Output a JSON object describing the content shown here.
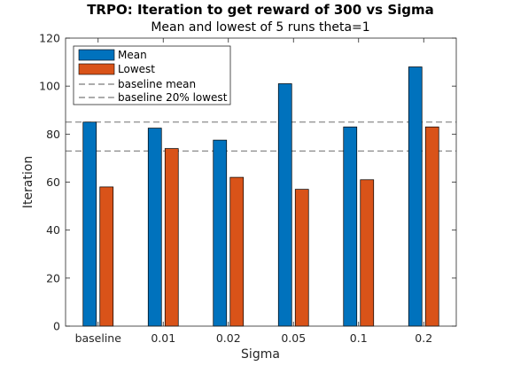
{
  "chart_data": {
    "type": "bar",
    "title": "TRPO: Iteration to get reward of 300 vs Sigma",
    "subtitle": "Mean and lowest of 5 runs theta=1",
    "xlabel": "Sigma",
    "ylabel": "Iteration",
    "ylim": [
      0,
      120
    ],
    "yticks": [
      0,
      20,
      40,
      60,
      80,
      100,
      120
    ],
    "categories": [
      "baseline",
      "0.01",
      "0.02",
      "0.05",
      "0.1",
      "0.2"
    ],
    "series": [
      {
        "name": "Mean",
        "color": "#0072BD",
        "values": [
          85,
          82.5,
          77.5,
          101,
          83,
          108
        ]
      },
      {
        "name": "Lowest",
        "color": "#D95319",
        "values": [
          58,
          74,
          62,
          57,
          61,
          83
        ]
      }
    ],
    "reference_lines": [
      {
        "name": "baseline mean",
        "value": 85
      },
      {
        "name": "baseline 20% lowest",
        "value": 73
      }
    ],
    "legend_position": "top-left",
    "grid": false
  }
}
